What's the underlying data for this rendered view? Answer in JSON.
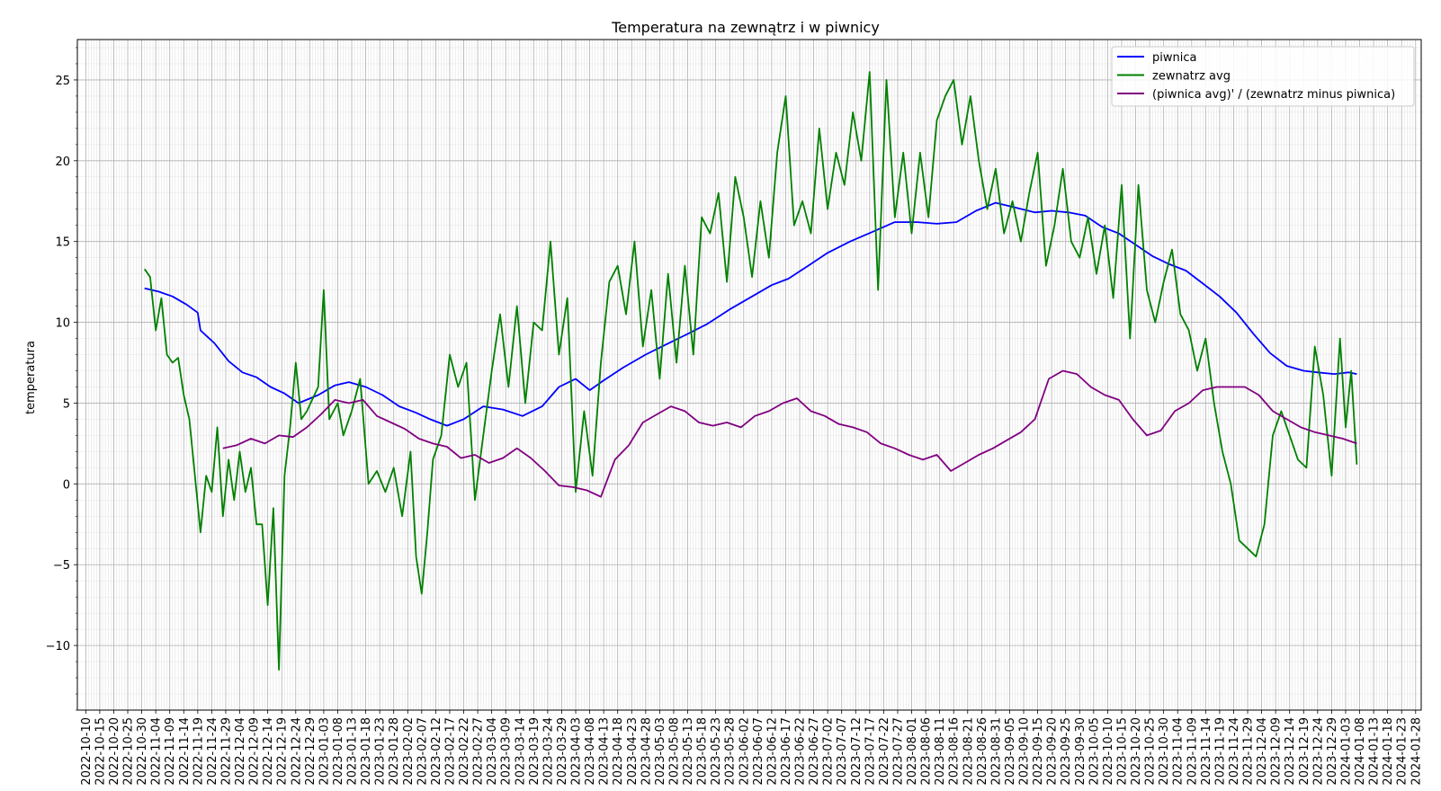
{
  "chart_data": {
    "type": "line",
    "title": "Temperatura na zewnątrz i w piwnicy",
    "xlabel": "",
    "ylabel": "temperatura",
    "xlim": [
      "2022-10-10",
      "2024-01-28"
    ],
    "ylim": [
      -14,
      27.5
    ],
    "yticks": [
      -10,
      -5,
      0,
      5,
      10,
      15,
      20,
      25
    ],
    "xtick_step_days": 5,
    "grid": true,
    "legend_position": "top-right",
    "series": [
      {
        "name": "piwnica",
        "color": "#0000ff",
        "x": [
          "2022-10-31",
          "2022-11-05",
          "2022-11-10",
          "2022-11-15",
          "2022-11-19",
          "2022-11-20",
          "2022-11-25",
          "2022-11-30",
          "2022-12-05",
          "2022-12-10",
          "2022-12-15",
          "2022-12-20",
          "2022-12-25",
          "2023-01-01",
          "2023-01-07",
          "2023-01-12",
          "2023-01-18",
          "2023-01-24",
          "2023-01-30",
          "2023-02-05",
          "2023-02-10",
          "2023-02-16",
          "2023-02-22",
          "2023-03-01",
          "2023-03-08",
          "2023-03-15",
          "2023-03-22",
          "2023-03-28",
          "2023-04-03",
          "2023-04-08",
          "2023-04-13",
          "2023-04-20",
          "2023-04-28",
          "2023-05-05",
          "2023-05-12",
          "2023-05-20",
          "2023-05-28",
          "2023-06-05",
          "2023-06-12",
          "2023-06-18",
          "2023-06-25",
          "2023-07-02",
          "2023-07-10",
          "2023-07-18",
          "2023-07-26",
          "2023-08-03",
          "2023-08-10",
          "2023-08-17",
          "2023-08-24",
          "2023-08-31",
          "2023-09-07",
          "2023-09-14",
          "2023-09-20",
          "2023-09-26",
          "2023-10-02",
          "2023-10-08",
          "2023-10-14",
          "2023-10-20",
          "2023-10-26",
          "2023-11-01",
          "2023-11-07",
          "2023-11-13",
          "2023-11-19",
          "2023-11-25",
          "2023-12-01",
          "2023-12-07",
          "2023-12-13",
          "2023-12-19",
          "2023-12-24",
          "2023-12-30",
          "2024-01-04",
          "2024-01-07"
        ],
        "values": [
          12.1,
          11.9,
          11.6,
          11.1,
          10.6,
          9.5,
          8.7,
          7.6,
          6.9,
          6.6,
          6.0,
          5.6,
          5.0,
          5.5,
          6.1,
          6.3,
          6.0,
          5.5,
          4.8,
          4.4,
          4.0,
          3.6,
          4.0,
          4.8,
          4.6,
          4.2,
          4.8,
          6.0,
          6.5,
          5.8,
          6.4,
          7.2,
          8.0,
          8.6,
          9.2,
          9.9,
          10.8,
          11.6,
          12.3,
          12.7,
          13.5,
          14.3,
          15.0,
          15.6,
          16.2,
          16.2,
          16.1,
          16.2,
          16.9,
          17.4,
          17.1,
          16.8,
          16.9,
          16.8,
          16.6,
          15.9,
          15.5,
          14.8,
          14.1,
          13.6,
          13.2,
          12.4,
          11.6,
          10.6,
          9.3,
          8.1,
          7.3,
          7.0,
          6.9,
          6.8,
          6.9,
          6.8
        ]
      },
      {
        "name": "zewnatrz avg",
        "color": "#008000",
        "x": [
          "2022-10-31",
          "2022-11-02",
          "2022-11-04",
          "2022-11-06",
          "2022-11-08",
          "2022-11-10",
          "2022-11-12",
          "2022-11-14",
          "2022-11-16",
          "2022-11-18",
          "2022-11-20",
          "2022-11-22",
          "2022-11-24",
          "2022-11-26",
          "2022-11-28",
          "2022-11-30",
          "2022-12-02",
          "2022-12-04",
          "2022-12-06",
          "2022-12-08",
          "2022-12-10",
          "2022-12-12",
          "2022-12-14",
          "2022-12-16",
          "2022-12-18",
          "2022-12-20",
          "2022-12-22",
          "2022-12-24",
          "2022-12-26",
          "2022-12-28",
          "2023-01-01",
          "2023-01-03",
          "2023-01-05",
          "2023-01-08",
          "2023-01-10",
          "2023-01-13",
          "2023-01-16",
          "2023-01-19",
          "2023-01-22",
          "2023-01-25",
          "2023-01-28",
          "2023-01-31",
          "2023-02-03",
          "2023-02-05",
          "2023-02-07",
          "2023-02-09",
          "2023-02-11",
          "2023-02-14",
          "2023-02-17",
          "2023-02-20",
          "2023-02-23",
          "2023-02-26",
          "2023-03-01",
          "2023-03-04",
          "2023-03-07",
          "2023-03-10",
          "2023-03-13",
          "2023-03-16",
          "2023-03-19",
          "2023-03-22",
          "2023-03-25",
          "2023-03-28",
          "2023-03-31",
          "2023-04-03",
          "2023-04-06",
          "2023-04-09",
          "2023-04-12",
          "2023-04-15",
          "2023-04-18",
          "2023-04-21",
          "2023-04-24",
          "2023-04-27",
          "2023-04-30",
          "2023-05-03",
          "2023-05-06",
          "2023-05-09",
          "2023-05-12",
          "2023-05-15",
          "2023-05-18",
          "2023-05-21",
          "2023-05-24",
          "2023-05-27",
          "2023-05-30",
          "2023-06-02",
          "2023-06-05",
          "2023-06-08",
          "2023-06-11",
          "2023-06-14",
          "2023-06-17",
          "2023-06-20",
          "2023-06-23",
          "2023-06-26",
          "2023-06-29",
          "2023-07-02",
          "2023-07-05",
          "2023-07-08",
          "2023-07-11",
          "2023-07-14",
          "2023-07-17",
          "2023-07-20",
          "2023-07-23",
          "2023-07-26",
          "2023-07-29",
          "2023-08-01",
          "2023-08-04",
          "2023-08-07",
          "2023-08-10",
          "2023-08-13",
          "2023-08-16",
          "2023-08-19",
          "2023-08-22",
          "2023-08-25",
          "2023-08-28",
          "2023-08-31",
          "2023-09-03",
          "2023-09-06",
          "2023-09-09",
          "2023-09-12",
          "2023-09-15",
          "2023-09-18",
          "2023-09-21",
          "2023-09-24",
          "2023-09-27",
          "2023-09-30",
          "2023-10-03",
          "2023-10-06",
          "2023-10-09",
          "2023-10-12",
          "2023-10-15",
          "2023-10-18",
          "2023-10-21",
          "2023-10-24",
          "2023-10-27",
          "2023-10-30",
          "2023-11-02",
          "2023-11-05",
          "2023-11-08",
          "2023-11-11",
          "2023-11-14",
          "2023-11-17",
          "2023-11-20",
          "2023-11-23",
          "2023-11-26",
          "2023-11-29",
          "2023-12-02",
          "2023-12-05",
          "2023-12-08",
          "2023-12-11",
          "2023-12-14",
          "2023-12-17",
          "2023-12-20",
          "2023-12-23",
          "2023-12-26",
          "2023-12-29",
          "2024-01-01",
          "2024-01-03",
          "2024-01-05",
          "2024-01-07"
        ],
        "values": [
          13.3,
          12.8,
          9.5,
          11.5,
          8.0,
          7.5,
          7.8,
          5.5,
          4.0,
          0.5,
          -3.0,
          0.5,
          -0.5,
          3.5,
          -2.0,
          1.5,
          -1.0,
          2.0,
          -0.5,
          1.0,
          -2.5,
          -2.5,
          -7.5,
          -1.5,
          -11.5,
          0.5,
          3.5,
          7.5,
          4.0,
          4.5,
          6.0,
          12.0,
          4.0,
          5.0,
          3.0,
          4.5,
          6.5,
          0.0,
          0.8,
          -0.5,
          1.0,
          -2.0,
          2.0,
          -4.5,
          -6.8,
          -3.0,
          1.5,
          3.0,
          8.0,
          6.0,
          7.5,
          -1.0,
          3.0,
          7.0,
          10.5,
          6.0,
          11.0,
          5.0,
          10.0,
          9.5,
          15.0,
          8.0,
          11.5,
          -0.5,
          4.5,
          0.5,
          7.5,
          12.5,
          13.5,
          10.5,
          15.0,
          8.5,
          12.0,
          6.5,
          13.0,
          7.5,
          13.5,
          8.0,
          16.5,
          15.5,
          18.0,
          12.5,
          19.0,
          16.5,
          12.8,
          17.5,
          14.0,
          20.5,
          24.0,
          16.0,
          17.5,
          15.5,
          22.0,
          17.0,
          20.5,
          18.5,
          23.0,
          20.0,
          25.5,
          12.0,
          25.0,
          16.5,
          20.5,
          15.5,
          20.5,
          16.5,
          22.5,
          24.0,
          25.0,
          21.0,
          24.0,
          20.0,
          17.0,
          19.5,
          15.5,
          17.5,
          15.0,
          18.0,
          20.5,
          13.5,
          16.0,
          19.5,
          15.0,
          14.0,
          16.5,
          13.0,
          16.0,
          11.5,
          18.5,
          9.0,
          18.5,
          12.0,
          10.0,
          12.5,
          14.5,
          10.5,
          9.5,
          7.0,
          9.0,
          5.0,
          2.0,
          0.0,
          -3.5,
          -4.0,
          -4.5,
          -2.5,
          3.0,
          4.5,
          3.0,
          1.5,
          1.0,
          8.5,
          5.5,
          0.5,
          9.0,
          3.5,
          7.0,
          1.2
        ]
      },
      {
        "name": "(piwnica avg)' / (zewnatrz minus piwnica)",
        "color": "#800080",
        "x": [
          "2022-11-28",
          "2022-12-03",
          "2022-12-08",
          "2022-12-13",
          "2022-12-18",
          "2022-12-23",
          "2022-12-28",
          "2023-01-02",
          "2023-01-07",
          "2023-01-12",
          "2023-01-17",
          "2023-01-22",
          "2023-01-27",
          "2023-02-01",
          "2023-02-06",
          "2023-02-11",
          "2023-02-16",
          "2023-02-21",
          "2023-02-26",
          "2023-03-03",
          "2023-03-08",
          "2023-03-13",
          "2023-03-18",
          "2023-03-23",
          "2023-03-28",
          "2023-04-02",
          "2023-04-07",
          "2023-04-12",
          "2023-04-17",
          "2023-04-22",
          "2023-04-27",
          "2023-05-02",
          "2023-05-07",
          "2023-05-12",
          "2023-05-17",
          "2023-05-22",
          "2023-05-27",
          "2023-06-01",
          "2023-06-06",
          "2023-06-11",
          "2023-06-16",
          "2023-06-21",
          "2023-06-26",
          "2023-07-01",
          "2023-07-06",
          "2023-07-11",
          "2023-07-16",
          "2023-07-21",
          "2023-07-26",
          "2023-07-31",
          "2023-08-05",
          "2023-08-10",
          "2023-08-15",
          "2023-08-20",
          "2023-08-25",
          "2023-08-30",
          "2023-09-04",
          "2023-09-09",
          "2023-09-14",
          "2023-09-19",
          "2023-09-24",
          "2023-09-29",
          "2023-10-04",
          "2023-10-09",
          "2023-10-14",
          "2023-10-19",
          "2023-10-24",
          "2023-10-29",
          "2023-11-03",
          "2023-11-08",
          "2023-11-13",
          "2023-11-18",
          "2023-11-23",
          "2023-11-28",
          "2023-12-03",
          "2023-12-08",
          "2023-12-13",
          "2023-12-18",
          "2023-12-23",
          "2023-12-28",
          "2024-01-02",
          "2024-01-07"
        ],
        "values": [
          2.2,
          2.4,
          2.8,
          2.5,
          3.0,
          2.9,
          3.5,
          4.3,
          5.2,
          5.0,
          5.2,
          4.2,
          3.8,
          3.4,
          2.8,
          2.5,
          2.3,
          1.6,
          1.8,
          1.3,
          1.6,
          2.2,
          1.6,
          0.8,
          -0.1,
          -0.2,
          -0.4,
          -0.8,
          1.5,
          2.4,
          3.8,
          4.3,
          4.8,
          4.5,
          3.8,
          3.6,
          3.8,
          3.5,
          4.2,
          4.5,
          5.0,
          5.3,
          4.5,
          4.2,
          3.7,
          3.5,
          3.2,
          2.5,
          2.2,
          1.8,
          1.5,
          1.8,
          0.8,
          1.3,
          1.8,
          2.2,
          2.7,
          3.2,
          4.0,
          6.5,
          7.0,
          6.8,
          6.0,
          5.5,
          5.2,
          4.0,
          3.0,
          3.3,
          4.5,
          5.0,
          5.8,
          6.0,
          6.0,
          6.0,
          5.5,
          4.5,
          4.0,
          3.5,
          3.2,
          3.0,
          2.8,
          2.5
        ]
      }
    ]
  }
}
